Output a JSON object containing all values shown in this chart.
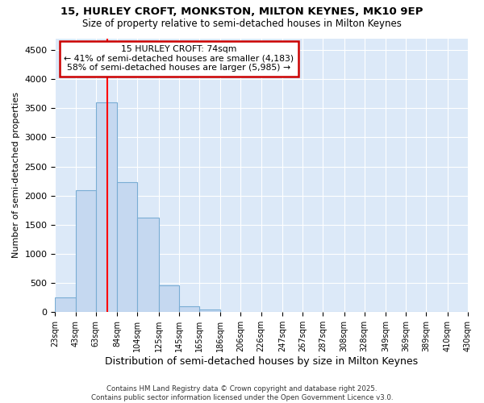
{
  "title_line1": "15, HURLEY CROFT, MONKSTON, MILTON KEYNES, MK10 9EP",
  "title_line2": "Size of property relative to semi-detached houses in Milton Keynes",
  "xlabel": "Distribution of semi-detached houses by size in Milton Keynes",
  "ylabel": "Number of semi-detached properties",
  "footnote": "Contains HM Land Registry data © Crown copyright and database right 2025.\nContains public sector information licensed under the Open Government Licence v3.0.",
  "bin_labels": [
    "23sqm",
    "43sqm",
    "63sqm",
    "84sqm",
    "104sqm",
    "125sqm",
    "145sqm",
    "165sqm",
    "186sqm",
    "206sqm",
    "226sqm",
    "247sqm",
    "267sqm",
    "287sqm",
    "308sqm",
    "328sqm",
    "349sqm",
    "369sqm",
    "389sqm",
    "410sqm",
    "430sqm"
  ],
  "bar_values": [
    250,
    2100,
    3600,
    2230,
    1620,
    460,
    100,
    50,
    0,
    0,
    0,
    0,
    0,
    0,
    0,
    0,
    0,
    0,
    0,
    0
  ],
  "bar_color": "#c5d8f0",
  "bar_edge_color": "#7aadd4",
  "figure_bg": "#ffffff",
  "plot_bg": "#dce9f8",
  "grid_color": "#ffffff",
  "red_line_x": 74,
  "annotation_text": "15 HURLEY CROFT: 74sqm\n← 41% of semi-detached houses are smaller (4,183)\n58% of semi-detached houses are larger (5,985) →",
  "annotation_box_color": "#ffffff",
  "annotation_box_edge": "#cc0000",
  "ylim": [
    0,
    4700
  ],
  "yticks": [
    0,
    500,
    1000,
    1500,
    2000,
    2500,
    3000,
    3500,
    4000,
    4500
  ],
  "bin_edges": [
    23,
    43,
    63,
    84,
    104,
    125,
    145,
    165,
    186,
    206,
    226,
    247,
    267,
    287,
    308,
    328,
    349,
    369,
    389,
    410,
    430
  ]
}
